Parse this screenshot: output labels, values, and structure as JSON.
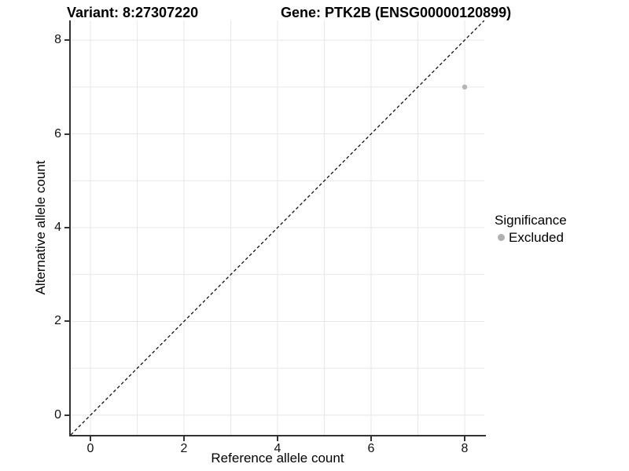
{
  "header": {
    "variant_label": "Variant: 8:27307220",
    "gene_label": "Gene: PTK2B (ENSG00000120899)"
  },
  "chart_data": {
    "type": "scatter",
    "xlabel": "Reference allele count",
    "ylabel": "Alternative allele count",
    "xlim": [
      -0.42,
      8.42
    ],
    "ylim": [
      -0.42,
      8.42
    ],
    "x_ticks": [
      0,
      2,
      4,
      6,
      8
    ],
    "y_ticks": [
      0,
      2,
      4,
      6,
      8
    ],
    "grid_interval": 1,
    "grid_on": true,
    "points": [
      {
        "x": 8,
        "y": 7,
        "series": "Excluded"
      }
    ],
    "reference_line": {
      "slope": 1,
      "intercept": 0,
      "style": "dashed"
    },
    "legend": {
      "position": "right",
      "title": "Significance",
      "items": [
        {
          "label": "Excluded",
          "color": "#b5b5b5"
        }
      ]
    },
    "colors": {
      "point": "#b5b5b5",
      "grid": "#e7e7e7",
      "axis": "#333333",
      "reference_line": "#111111"
    }
  }
}
